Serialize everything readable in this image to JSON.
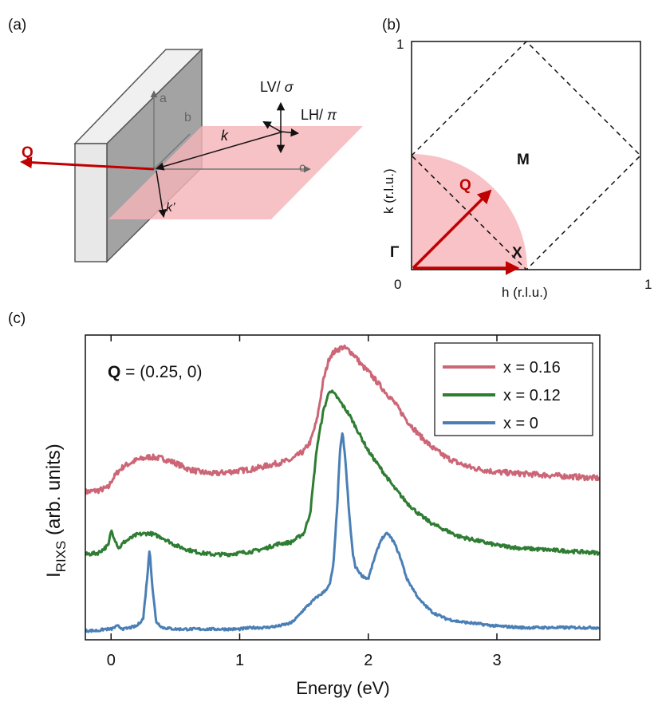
{
  "panel_a": {
    "label": "(a)",
    "axis_a": "a",
    "axis_b": "b",
    "axis_c": "c",
    "q_label": "Q",
    "k_in": "k",
    "k_out": "k’",
    "lv_prefix": "LV/ ",
    "lv_symbol": "σ",
    "lh_prefix": "LH/ ",
    "lh_symbol": "π",
    "colors": {
      "q_arrow": "#c00000",
      "plane": "#f5b5b8",
      "crystal_front": "#e6e6e6",
      "crystal_face": "#a0a0a0"
    }
  },
  "panel_b": {
    "label": "(b)",
    "tick_top": "1",
    "tick_origin": "0",
    "tick_right": "1",
    "xlabel": "h (r.l.u.)",
    "ylabel": "k (r.l.u.)",
    "gamma": "Γ",
    "x_point": "X",
    "m_point": "M",
    "q_label": "Q",
    "colors": {
      "q_arrow": "#c00000",
      "region": "#f8c2c6"
    }
  },
  "panel_c": {
    "label": "(c)",
    "annotation_bold": "Q",
    "annotation_rest": " = (0.25, 0)",
    "ylabel_main": "I",
    "ylabel_sub": "RIXS",
    "ylabel_rest": " (arb. units)"
  },
  "chart_data": {
    "type": "line",
    "title": "",
    "xlabel": "Energy (eV)",
    "ylabel": "I_RIXS (arb. units)",
    "xlim": [
      -0.2,
      3.8
    ],
    "ylim": [
      0,
      1.0
    ],
    "xticks": [
      0,
      1,
      2,
      3
    ],
    "xtick_labels": [
      "0",
      "1",
      "2",
      "3"
    ],
    "legend_position": "top-right",
    "series": [
      {
        "name": "x = 0.16",
        "color": "#cc6677",
        "x": [
          -0.2,
          -0.1,
          -0.02,
          0.0,
          0.05,
          0.1,
          0.2,
          0.3,
          0.4,
          0.5,
          0.6,
          0.7,
          0.8,
          0.9,
          1.0,
          1.1,
          1.2,
          1.3,
          1.4,
          1.5,
          1.55,
          1.6,
          1.65,
          1.7,
          1.75,
          1.8,
          1.85,
          1.9,
          1.95,
          2.0,
          2.1,
          2.2,
          2.3,
          2.4,
          2.5,
          2.6,
          2.7,
          2.8,
          3.0,
          3.2,
          3.4,
          3.6,
          3.8
        ],
        "y": [
          0.485,
          0.49,
          0.5,
          0.52,
          0.55,
          0.57,
          0.59,
          0.6,
          0.595,
          0.58,
          0.56,
          0.55,
          0.545,
          0.55,
          0.555,
          0.56,
          0.57,
          0.58,
          0.59,
          0.62,
          0.65,
          0.72,
          0.85,
          0.93,
          0.95,
          0.96,
          0.95,
          0.93,
          0.9,
          0.88,
          0.83,
          0.78,
          0.72,
          0.67,
          0.63,
          0.6,
          0.58,
          0.565,
          0.55,
          0.545,
          0.54,
          0.535,
          0.53
        ]
      },
      {
        "name": "x = 0.12",
        "color": "#2e7d32",
        "x": [
          -0.2,
          -0.1,
          -0.02,
          0.0,
          0.02,
          0.06,
          0.1,
          0.2,
          0.3,
          0.4,
          0.5,
          0.6,
          0.7,
          0.8,
          0.9,
          1.0,
          1.1,
          1.2,
          1.3,
          1.4,
          1.5,
          1.55,
          1.6,
          1.65,
          1.7,
          1.75,
          1.8,
          1.85,
          1.9,
          1.95,
          2.0,
          2.1,
          2.2,
          2.3,
          2.4,
          2.5,
          2.6,
          2.7,
          2.8,
          3.0,
          3.2,
          3.4,
          3.6,
          3.8
        ],
        "y": [
          0.28,
          0.285,
          0.31,
          0.36,
          0.34,
          0.3,
          0.32,
          0.345,
          0.35,
          0.335,
          0.31,
          0.295,
          0.285,
          0.28,
          0.28,
          0.285,
          0.29,
          0.3,
          0.315,
          0.32,
          0.35,
          0.42,
          0.63,
          0.75,
          0.82,
          0.8,
          0.77,
          0.74,
          0.7,
          0.66,
          0.62,
          0.56,
          0.5,
          0.45,
          0.41,
          0.38,
          0.36,
          0.34,
          0.33,
          0.31,
          0.3,
          0.295,
          0.29,
          0.285
        ]
      },
      {
        "name": "x = 0",
        "color": "#4a7fb5",
        "x": [
          -0.2,
          -0.1,
          -0.05,
          0.0,
          0.05,
          0.1,
          0.15,
          0.2,
          0.25,
          0.28,
          0.3,
          0.32,
          0.35,
          0.4,
          0.5,
          0.7,
          0.9,
          1.0,
          1.1,
          1.2,
          1.3,
          1.4,
          1.45,
          1.5,
          1.55,
          1.6,
          1.65,
          1.7,
          1.73,
          1.76,
          1.78,
          1.8,
          1.82,
          1.85,
          1.88,
          1.9,
          1.95,
          2.0,
          2.05,
          2.1,
          2.15,
          2.2,
          2.25,
          2.3,
          2.4,
          2.5,
          2.6,
          2.7,
          2.8,
          3.0,
          3.2,
          3.4,
          3.6,
          3.8
        ],
        "y": [
          0.03,
          0.03,
          0.035,
          0.035,
          0.045,
          0.035,
          0.04,
          0.045,
          0.07,
          0.2,
          0.3,
          0.18,
          0.06,
          0.04,
          0.035,
          0.035,
          0.035,
          0.035,
          0.04,
          0.04,
          0.045,
          0.055,
          0.075,
          0.1,
          0.12,
          0.14,
          0.155,
          0.18,
          0.25,
          0.45,
          0.62,
          0.68,
          0.6,
          0.42,
          0.28,
          0.24,
          0.21,
          0.2,
          0.27,
          0.33,
          0.35,
          0.32,
          0.27,
          0.2,
          0.13,
          0.09,
          0.07,
          0.06,
          0.055,
          0.045,
          0.04,
          0.04,
          0.04,
          0.04
        ]
      }
    ]
  }
}
